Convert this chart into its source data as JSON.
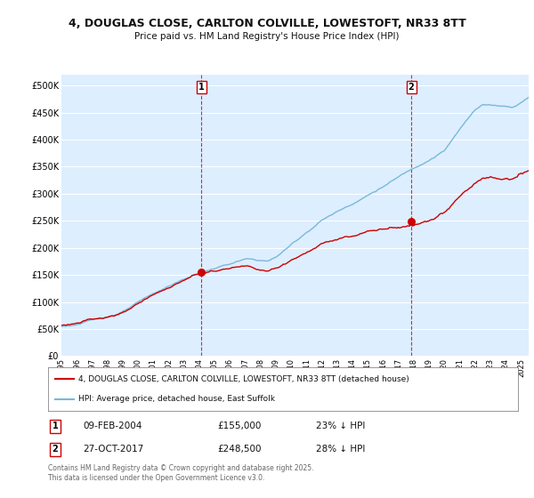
{
  "title": "4, DOUGLAS CLOSE, CARLTON COLVILLE, LOWESTOFT, NR33 8TT",
  "subtitle": "Price paid vs. HM Land Registry's House Price Index (HPI)",
  "ylim": [
    0,
    520000
  ],
  "yticks": [
    0,
    50000,
    100000,
    150000,
    200000,
    250000,
    300000,
    350000,
    400000,
    450000,
    500000
  ],
  "ytick_labels": [
    "£0",
    "£50K",
    "£100K",
    "£150K",
    "£200K",
    "£250K",
    "£300K",
    "£350K",
    "£400K",
    "£450K",
    "£500K"
  ],
  "hpi_color": "#7ab8d9",
  "sale_color": "#cc0000",
  "background_color": "#ddeeff",
  "grid_color": "#ffffff",
  "sale1_date": "09-FEB-2004",
  "sale1_price": 155000,
  "sale1_hpi_pct": "23% ↓ HPI",
  "sale2_date": "27-OCT-2017",
  "sale2_price": 248500,
  "sale2_hpi_pct": "28% ↓ HPI",
  "legend_line1": "4, DOUGLAS CLOSE, CARLTON COLVILLE, LOWESTOFT, NR33 8TT (detached house)",
  "legend_line2": "HPI: Average price, detached house, East Suffolk",
  "footnote": "Contains HM Land Registry data © Crown copyright and database right 2025.\nThis data is licensed under the Open Government Licence v3.0.",
  "xlim_start": 1995.0,
  "xlim_end": 2025.5,
  "sale1_t": 2004.125,
  "sale2_t": 2017.833
}
